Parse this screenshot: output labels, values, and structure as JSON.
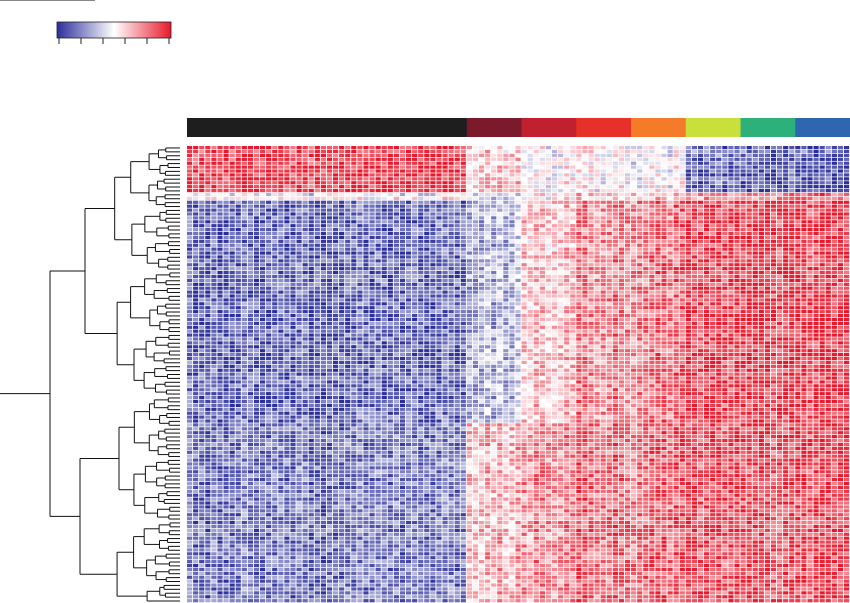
{
  "chart_data": {
    "type": "heatmap",
    "title": "",
    "xlabel": "",
    "ylabel": "",
    "color_scale": {
      "low": "#2b2f9a",
      "mid": "#ffffff",
      "high": "#e8192c",
      "tick_count": 6,
      "tick_labels": []
    },
    "legend_placement": "top-left",
    "dendrogram": "left",
    "grid": true,
    "n_rows": 117,
    "column_groups": [
      {
        "color": "#1e1e1e",
        "columns": 46,
        "profile": [
          [
            0,
            1.7
          ],
          [
            0.2,
            -0.1
          ],
          [
            0.5,
            -1.5
          ],
          [
            1,
            -1.3
          ]
        ]
      },
      {
        "color": "#7a1a2a",
        "columns": 9,
        "profile": [
          [
            0,
            0.5
          ],
          [
            0.2,
            -0.4
          ],
          [
            0.5,
            -0.7
          ],
          [
            1,
            0.7
          ]
        ]
      },
      {
        "color": "#c2202e",
        "columns": 9,
        "profile": [
          [
            0,
            0.0
          ],
          [
            0.2,
            0.1
          ],
          [
            0.5,
            0.5
          ],
          [
            1,
            1.0
          ]
        ]
      },
      {
        "color": "#e8302a",
        "columns": 9,
        "profile": [
          [
            0,
            0.1
          ],
          [
            0.2,
            0.4
          ],
          [
            0.5,
            1.1
          ],
          [
            1,
            1.3
          ]
        ]
      },
      {
        "color": "#f47b2a",
        "columns": 9,
        "profile": [
          [
            0,
            -0.1
          ],
          [
            0.2,
            0.5
          ],
          [
            0.5,
            1.2
          ],
          [
            1,
            1.3
          ]
        ]
      },
      {
        "color": "#c8df3c",
        "columns": 9,
        "profile": [
          [
            0,
            -1.4
          ],
          [
            0.2,
            1.0
          ],
          [
            0.5,
            1.6
          ],
          [
            1,
            1.5
          ]
        ]
      },
      {
        "color": "#2db07a",
        "columns": 9,
        "profile": [
          [
            0,
            -1.6
          ],
          [
            0.2,
            1.2
          ],
          [
            0.5,
            1.7
          ],
          [
            1,
            1.5
          ]
        ]
      },
      {
        "color": "#2f66b0",
        "columns": 9,
        "profile": [
          [
            0,
            -1.8
          ],
          [
            0.2,
            1.2
          ],
          [
            0.5,
            1.7
          ],
          [
            1,
            1.6
          ]
        ]
      }
    ]
  }
}
